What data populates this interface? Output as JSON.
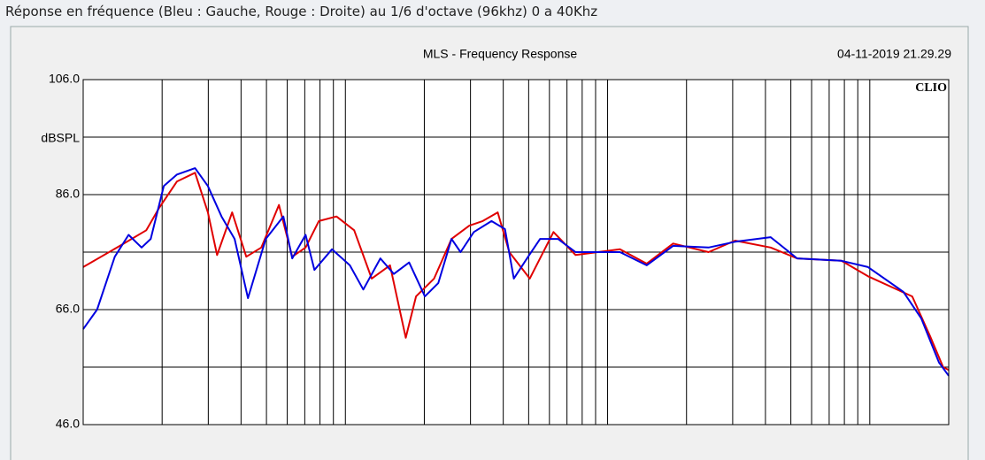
{
  "caption": "Réponse en fréquence (Bleu : Gauche, Rouge : Droite) au 1/6 d'octave (96khz) 0 a 40Khz",
  "chart_data": {
    "type": "line",
    "title": "MLS - Frequency Response",
    "date": "04-11-2019 21.29.29",
    "brand": "CLIO",
    "ylabel": "dBSPL",
    "xscale": "log",
    "xlim": [
      10,
      20000
    ],
    "ylim": [
      46,
      106
    ],
    "yticks": [
      {
        "value": 106,
        "label": "106.0"
      },
      {
        "value": 86,
        "label": "86.0"
      },
      {
        "value": 66,
        "label": "66.0"
      },
      {
        "value": 46,
        "label": "46.0"
      }
    ],
    "yminor": [
      96,
      76,
      56
    ],
    "xgrid": [
      20,
      30,
      40,
      50,
      60,
      70,
      80,
      90,
      100,
      200,
      300,
      400,
      500,
      600,
      700,
      800,
      900,
      1000,
      2000,
      3000,
      4000,
      5000,
      6000,
      7000,
      8000,
      9000,
      10000
    ],
    "grid": true,
    "series": [
      {
        "color": "#e00000",
        "x": [
          10,
          14.3,
          17.4,
          19.5,
          22.8,
          26.7,
          29.9,
          32.4,
          37,
          41.9,
          47.8,
          55.8,
          62.7,
          70.5,
          79.2,
          92.5,
          108,
          126,
          148,
          170,
          186,
          218,
          254,
          297,
          334,
          381,
          422,
          505,
          622,
          755,
          1115,
          1409,
          1778,
          2427,
          3063,
          4188,
          5284,
          7798,
          9842,
          14520,
          16980,
          19050,
          20000
        ],
        "values": [
          73.4,
          77.5,
          79.8,
          83.7,
          88.3,
          89.8,
          82.9,
          75.5,
          82.9,
          75.2,
          76.8,
          84.2,
          75.2,
          76.8,
          81.4,
          82.2,
          79.8,
          71.4,
          73.7,
          61.1,
          68.3,
          71.4,
          78.3,
          80.6,
          81.4,
          82.9,
          76,
          71.4,
          79.5,
          75.5,
          76.5,
          74,
          77.5,
          76,
          78,
          76.8,
          74.9,
          74.5,
          71.8,
          68.3,
          61.4,
          56,
          55.5
        ]
      },
      {
        "color": "#0000e0",
        "x": [
          10,
          11.3,
          13.2,
          14.9,
          16.7,
          18.1,
          20.3,
          22.8,
          26.7,
          29.9,
          33.7,
          37.8,
          42.5,
          49.7,
          58,
          62.7,
          70.5,
          76.2,
          88.9,
          104,
          117,
          136,
          153,
          175,
          201,
          226,
          254,
          275,
          309,
          361,
          406,
          439,
          493,
          553,
          647,
          755,
          1115,
          1409,
          1778,
          2427,
          3063,
          4188,
          5284,
          7798,
          9842,
          13430,
          15700,
          18360,
          20000
        ],
        "values": [
          62.6,
          66,
          75.2,
          79,
          76.8,
          78.3,
          87.5,
          89.5,
          90.6,
          87.5,
          82.2,
          78.3,
          68,
          78.3,
          82.2,
          74.9,
          79,
          72.9,
          76.5,
          73.7,
          69.5,
          74.9,
          72.2,
          74.2,
          68.3,
          70.6,
          78.3,
          76,
          79.5,
          81.4,
          80,
          71.4,
          74.9,
          78.3,
          78.3,
          76,
          76,
          73.7,
          77.1,
          76.8,
          77.8,
          78.6,
          74.9,
          74.5,
          73.4,
          69.1,
          64.5,
          56.8,
          54.5
        ]
      }
    ]
  }
}
